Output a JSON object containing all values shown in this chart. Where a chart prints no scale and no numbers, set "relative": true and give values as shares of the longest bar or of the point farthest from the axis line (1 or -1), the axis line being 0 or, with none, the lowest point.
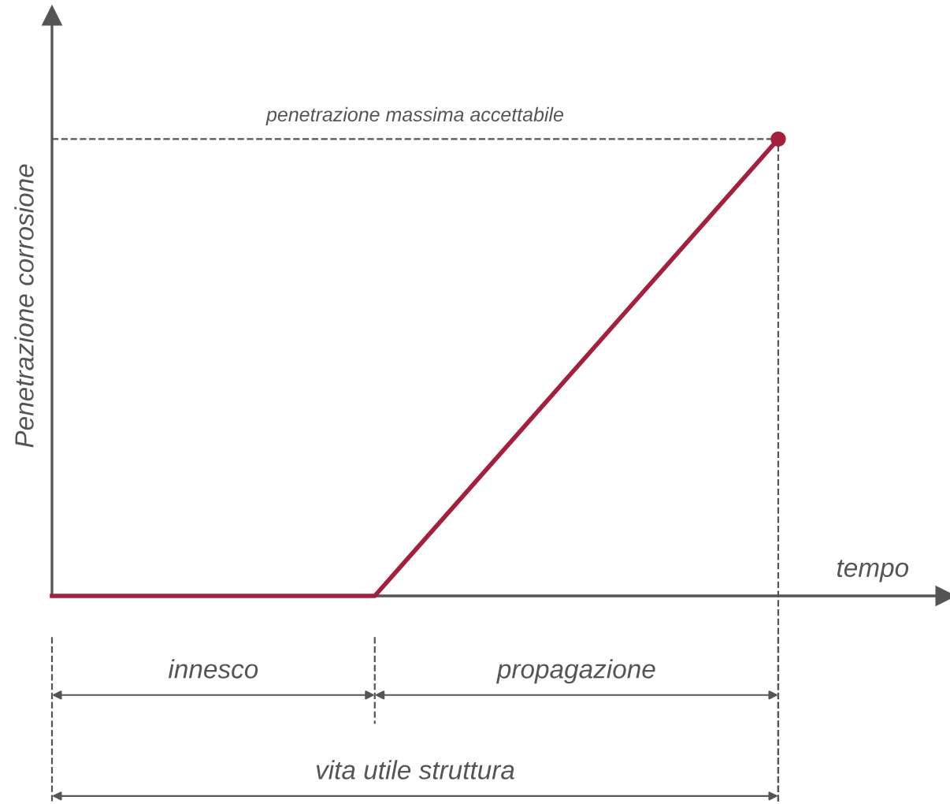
{
  "chart_data": {
    "type": "line",
    "relative": true,
    "xlabel": "tempo",
    "ylabel": "Penetrazione corrosione",
    "tick_labels": false,
    "grid": false,
    "categories": [
      null,
      null,
      null,
      null,
      null,
      null,
      null,
      null,
      null,
      null
    ],
    "series": [
      {
        "color": "#a3203f",
        "values": [
          0,
          0,
          0,
          0,
          0,
          0.2,
          0.4,
          0.6,
          0.8,
          1
        ]
      }
    ],
    "ref_lines": [
      {
        "axis": "y",
        "value": 1,
        "label": "penetrazione massima accettabile",
        "line_style": "dashed",
        "color": "#555555"
      }
    ],
    "annotations": [
      "innesco",
      "propagazione",
      "vita utile struttura"
    ]
  }
}
